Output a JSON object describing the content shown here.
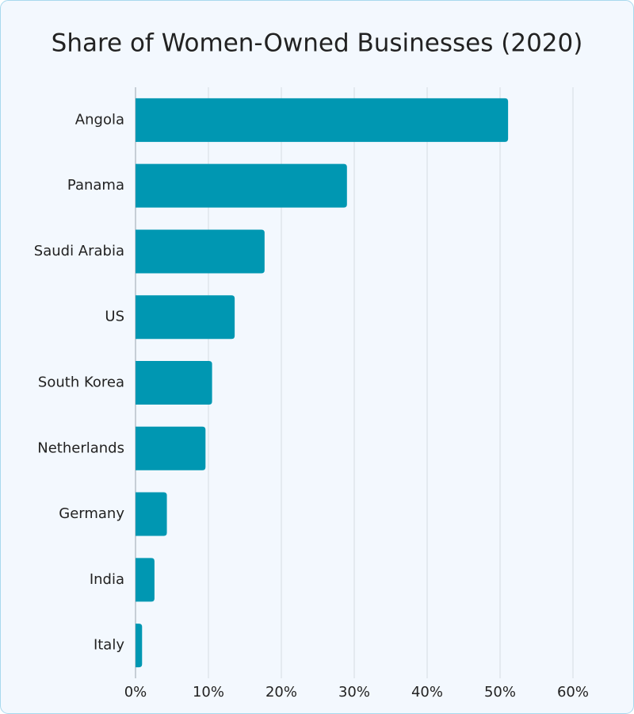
{
  "chart_data": {
    "type": "hbar",
    "title": "Share of Women-Owned Businesses (2020)",
    "categories": [
      "Angola",
      "Panama",
      "Saudi Arabia",
      "US",
      "South Korea",
      "Netherlands",
      "Germany",
      "India",
      "Italy"
    ],
    "values": [
      51.1,
      29,
      17.7,
      13.6,
      10.5,
      9.6,
      4.3,
      2.6,
      0.9
    ],
    "color": "#0097b2",
    "xlim": [
      0,
      60
    ],
    "xticks": [
      {
        "value": 0,
        "label": "0%"
      },
      {
        "value": 10,
        "label": "10%"
      },
      {
        "value": 20,
        "label": "20%"
      },
      {
        "value": 30,
        "label": "30%"
      },
      {
        "value": 40,
        "label": "40%"
      },
      {
        "value": 50,
        "label": "50%"
      },
      {
        "value": 60,
        "label": "60%"
      }
    ],
    "grid": true
  }
}
